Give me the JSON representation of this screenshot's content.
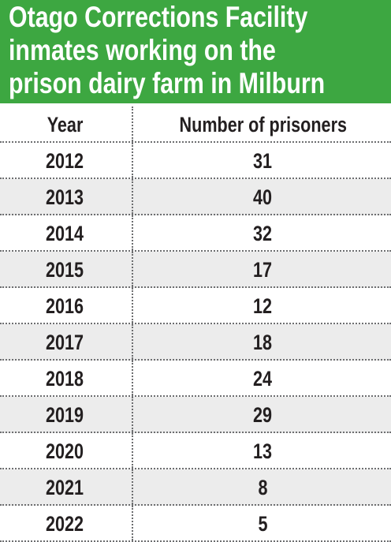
{
  "header": {
    "title_lines": [
      "Otago Corrections Facility",
      "inmates working on the",
      "prison dairy farm in Milburn"
    ]
  },
  "table": {
    "columns": [
      "Year",
      "Number of prisoners"
    ],
    "rows": [
      [
        2012,
        31
      ],
      [
        2013,
        40
      ],
      [
        2014,
        32
      ],
      [
        2015,
        17
      ],
      [
        2016,
        12
      ],
      [
        2017,
        18
      ],
      [
        2018,
        24
      ],
      [
        2019,
        29
      ],
      [
        2020,
        13
      ],
      [
        2021,
        8
      ],
      [
        2022,
        5
      ]
    ]
  }
}
